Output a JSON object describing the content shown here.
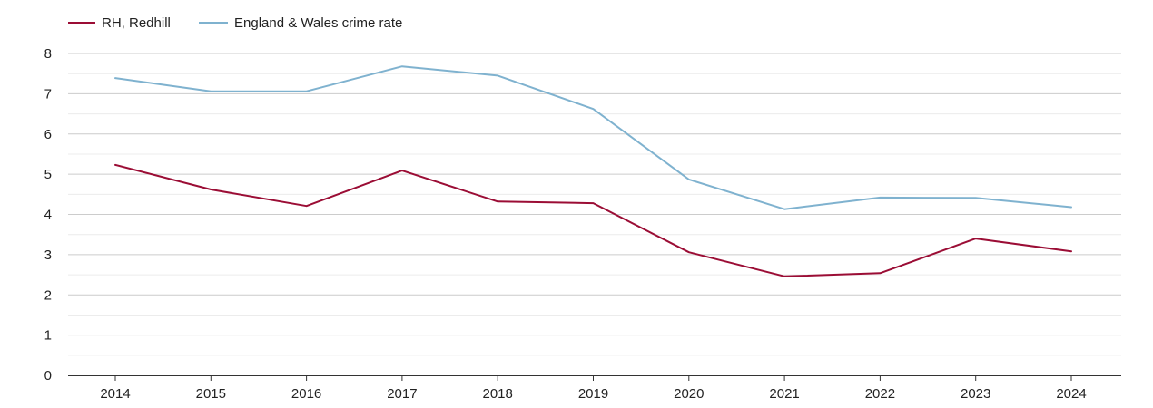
{
  "chart_data": {
    "type": "line",
    "title": "",
    "xlabel": "",
    "ylabel": "",
    "categories": [
      "2014",
      "2015",
      "2016",
      "2017",
      "2018",
      "2019",
      "2020",
      "2021",
      "2022",
      "2023",
      "2024"
    ],
    "ylim": [
      0,
      8
    ],
    "yticks": [
      "0",
      "1",
      "2",
      "3",
      "4",
      "5",
      "6",
      "7",
      "8"
    ],
    "grid": true,
    "legend_position": "top-left",
    "series": [
      {
        "name": "RH, Redhill",
        "color": "#9b0d35",
        "values": [
          5.23,
          4.62,
          4.21,
          5.09,
          4.32,
          4.28,
          3.06,
          2.46,
          2.54,
          3.4,
          3.08
        ]
      },
      {
        "name": "England & Wales crime rate",
        "color": "#7fb2cf",
        "values": [
          7.39,
          7.06,
          7.06,
          7.68,
          7.45,
          6.62,
          4.87,
          4.13,
          4.42,
          4.41,
          4.18
        ]
      }
    ]
  }
}
